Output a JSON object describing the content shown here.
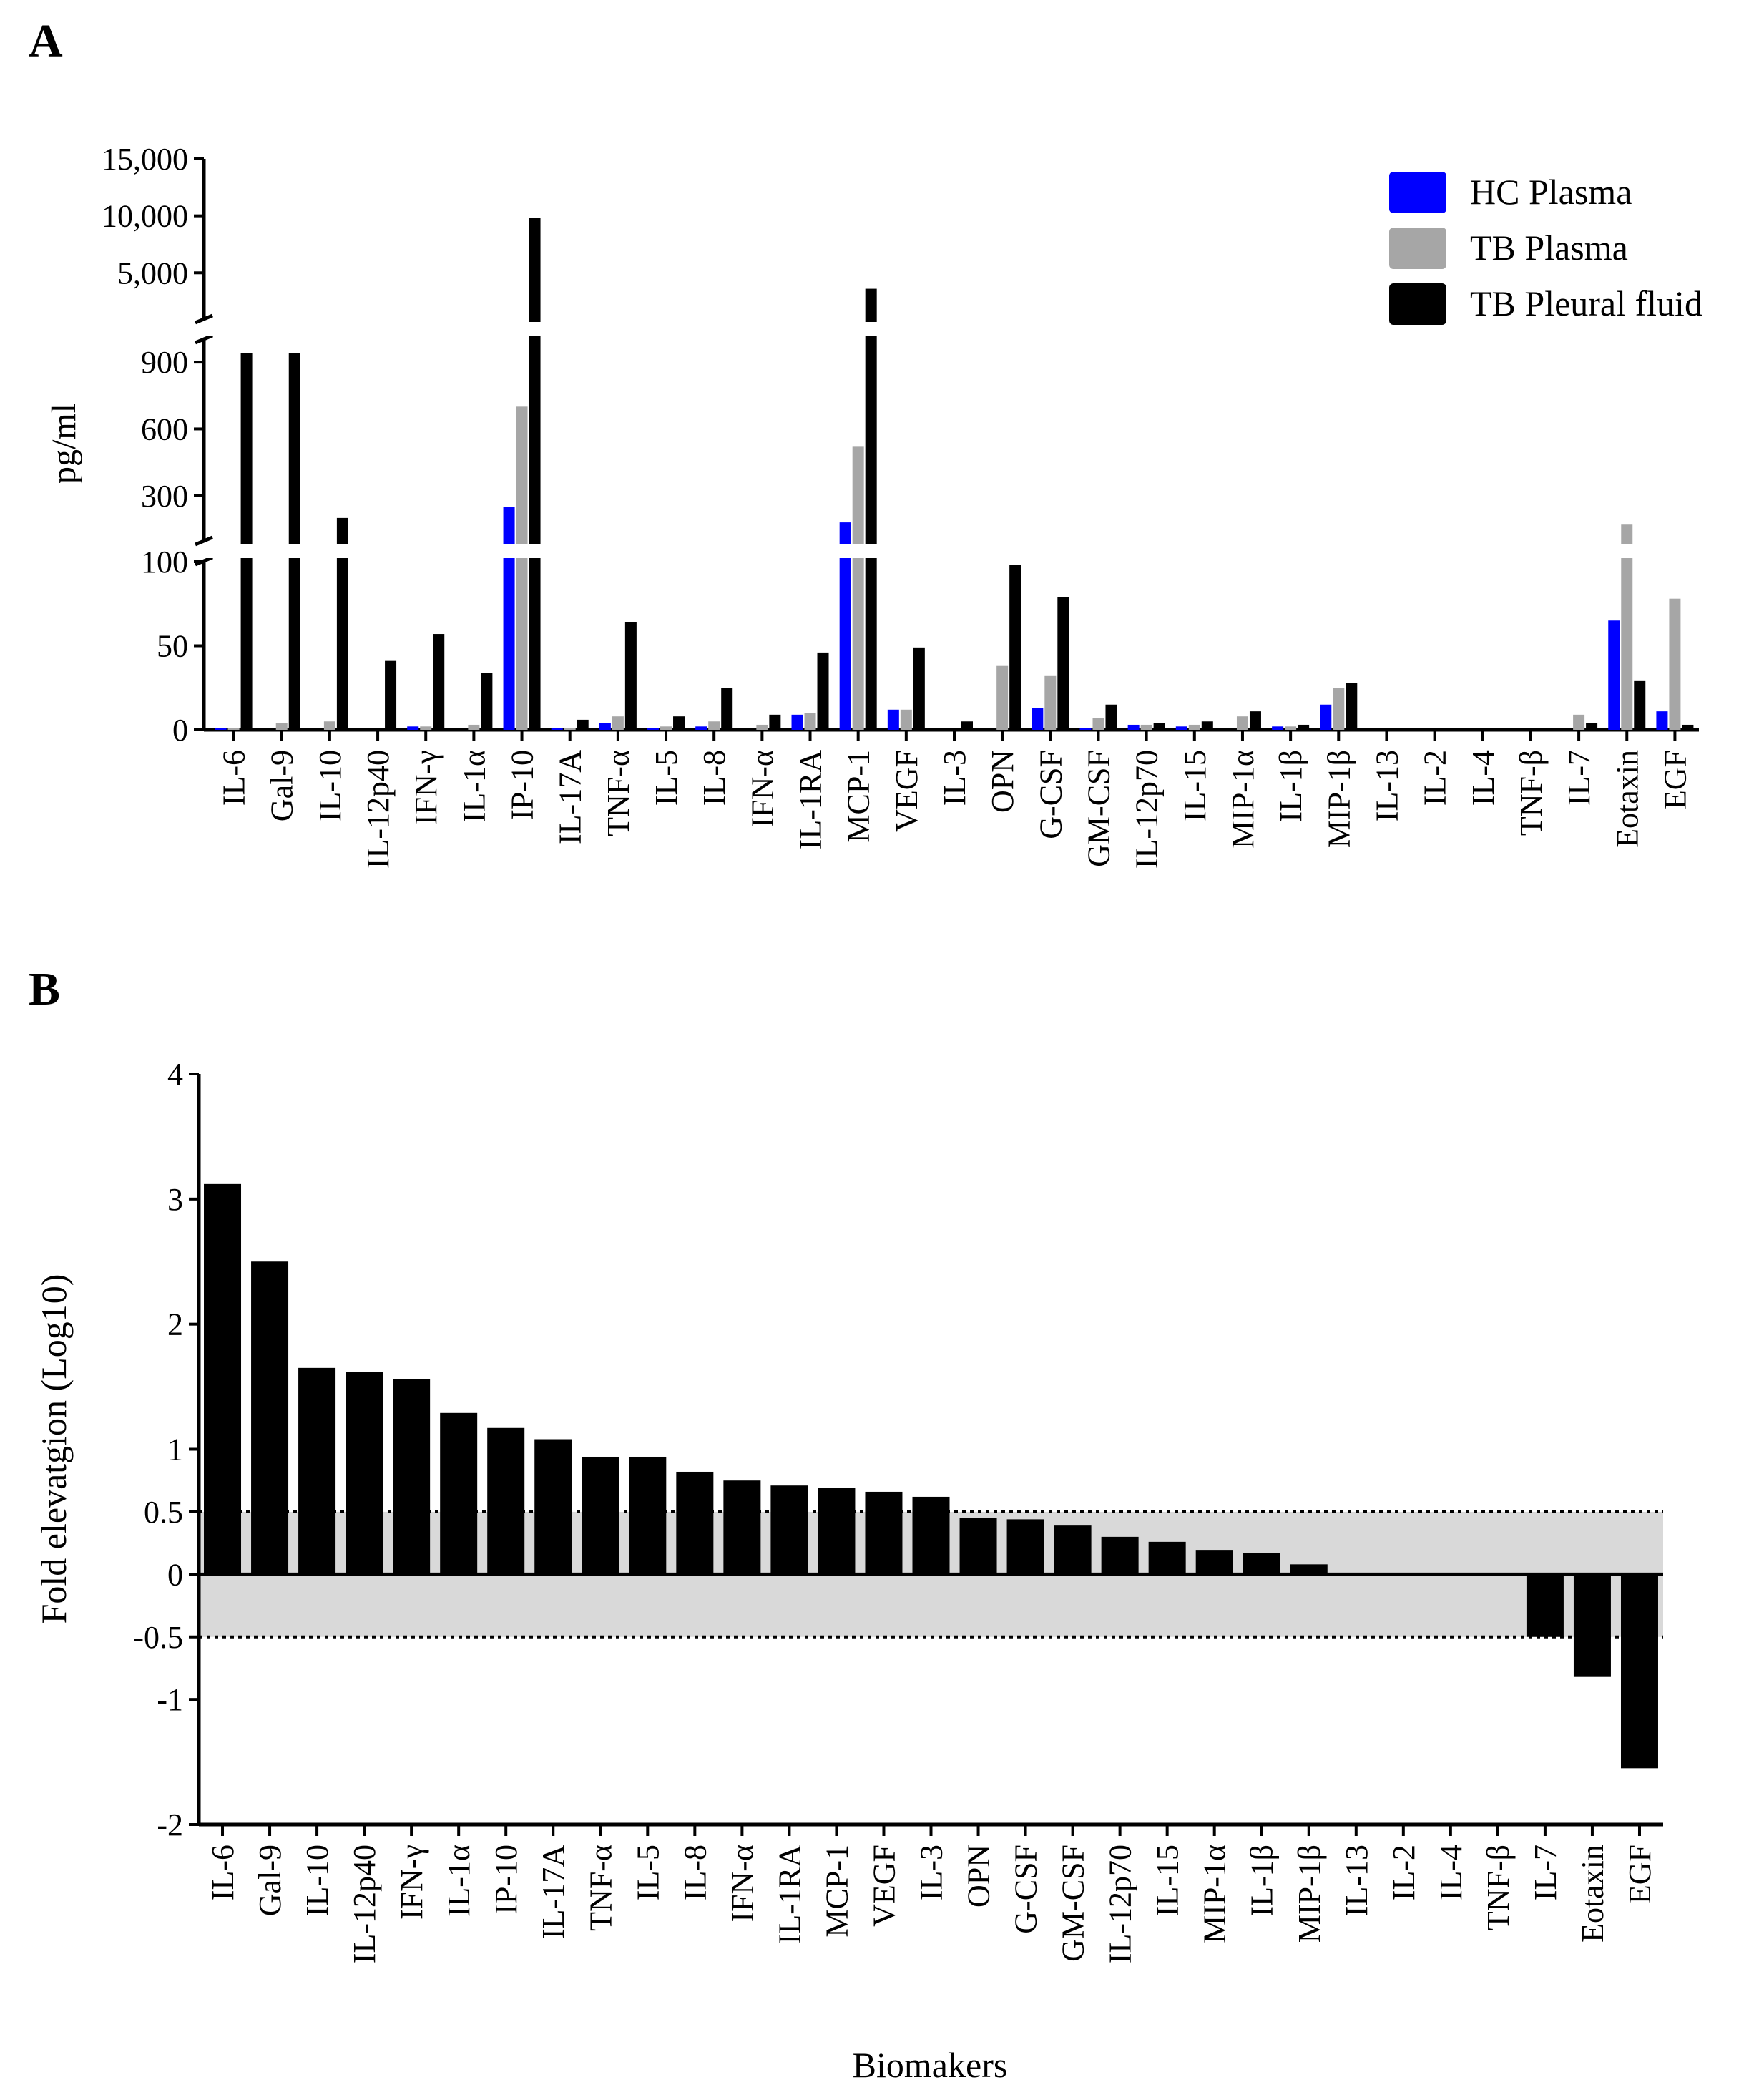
{
  "panel_a_letter": "A",
  "panel_b_letter": "B",
  "chart_data": [
    {
      "type": "bar",
      "ylabel": "pg/ml",
      "xlabel": "",
      "legend_position": "top-right",
      "y_ticks_upper": [
        "15,000",
        "10,000",
        "5,000"
      ],
      "y_ticks_middle": [
        "900",
        "600",
        "300"
      ],
      "y_ticks_lower": [
        "100",
        "50",
        "0"
      ],
      "y_segments": [
        {
          "range": [
            0,
            100
          ]
        },
        {
          "range": [
            100,
            1000
          ]
        },
        {
          "range": [
            1000,
            15000
          ]
        }
      ],
      "categories": [
        "IL-6",
        "Gal-9",
        "IL-10",
        "IL-12p40",
        "IFN-γ",
        "IL-1α",
        "IP-10",
        "IL-17A",
        "TNF-α",
        "IL-5",
        "IL-8",
        "IFN-α",
        "IL-1RA",
        "MCP-1",
        "VEGF",
        "IL-3",
        "OPN",
        "G-CSF",
        "GM-CSF",
        "IL-12p70",
        "IL-15",
        "MIP-1α",
        "IL-1β",
        "MIP-1β",
        "IL-13",
        "IL-2",
        "IL-4",
        "TNF-β",
        "IL-7",
        "Eotaxin",
        "EGF"
      ],
      "series": [
        {
          "name": "HC Plasma",
          "color": "#0000ff",
          "values": [
            1,
            0,
            0,
            0,
            2,
            0,
            250,
            1,
            4,
            1,
            2,
            0,
            9,
            180,
            12,
            0,
            0,
            13,
            1,
            3,
            2,
            0,
            2,
            15,
            0,
            0,
            0,
            0,
            0,
            65,
            11
          ]
        },
        {
          "name": "TB Plasma",
          "color": "#a6a6a6",
          "values": [
            1,
            4,
            5,
            0,
            2,
            3,
            700,
            1,
            8,
            2,
            5,
            3,
            10,
            520,
            12,
            0,
            38,
            32,
            7,
            3,
            3,
            8,
            2,
            25,
            0,
            0,
            0,
            0,
            9,
            170,
            78
          ]
        },
        {
          "name": "TB Pleural fluid",
          "color": "#000000",
          "values": [
            940,
            940,
            200,
            41,
            57,
            34,
            9800,
            6,
            64,
            8,
            25,
            9,
            46,
            3600,
            49,
            5,
            98,
            79,
            15,
            4,
            5,
            11,
            3,
            28,
            0,
            0,
            0,
            0,
            4,
            29,
            3
          ]
        }
      ]
    },
    {
      "type": "bar",
      "ylabel": "Fold elevatgion (Log10)",
      "xlabel": "Biomakers",
      "ylim": [
        -2,
        4
      ],
      "y_ticks": [
        "4",
        "3",
        "2",
        "1",
        "0.5",
        "0",
        "-0.5",
        "-1",
        "-2"
      ],
      "y_tick_values": [
        4,
        3,
        2,
        1,
        0.5,
        0,
        -0.5,
        -1,
        -2
      ],
      "reference_lines": [
        0.5,
        -0.5
      ],
      "shaded_band": [
        -0.5,
        0.5
      ],
      "categories": [
        "IL-6",
        "Gal-9",
        "IL-10",
        "IL-12p40",
        "IFN-γ",
        "IL-1α",
        "IP-10",
        "IL-17A",
        "TNF-α",
        "IL-5",
        "IL-8",
        "IFN-α",
        "IL-1RA",
        "MCP-1",
        "VEGF",
        "IL-3",
        "OPN",
        "G-CSF",
        "GM-CSF",
        "IL-12p70",
        "IL-15",
        "MIP-1α",
        "IL-1β",
        "MIP-1β",
        "IL-13",
        "IL-2",
        "IL-4",
        "TNF-β",
        "IL-7",
        "Eotaxin",
        "EGF"
      ],
      "values": [
        3.12,
        2.5,
        1.65,
        1.62,
        1.56,
        1.29,
        1.17,
        1.08,
        0.94,
        0.94,
        0.82,
        0.75,
        0.71,
        0.69,
        0.66,
        0.62,
        0.45,
        0.44,
        0.39,
        0.3,
        0.26,
        0.19,
        0.17,
        0.08,
        0,
        0,
        0,
        0,
        -0.5,
        -0.82,
        -1.55
      ],
      "color": "#000000"
    }
  ]
}
